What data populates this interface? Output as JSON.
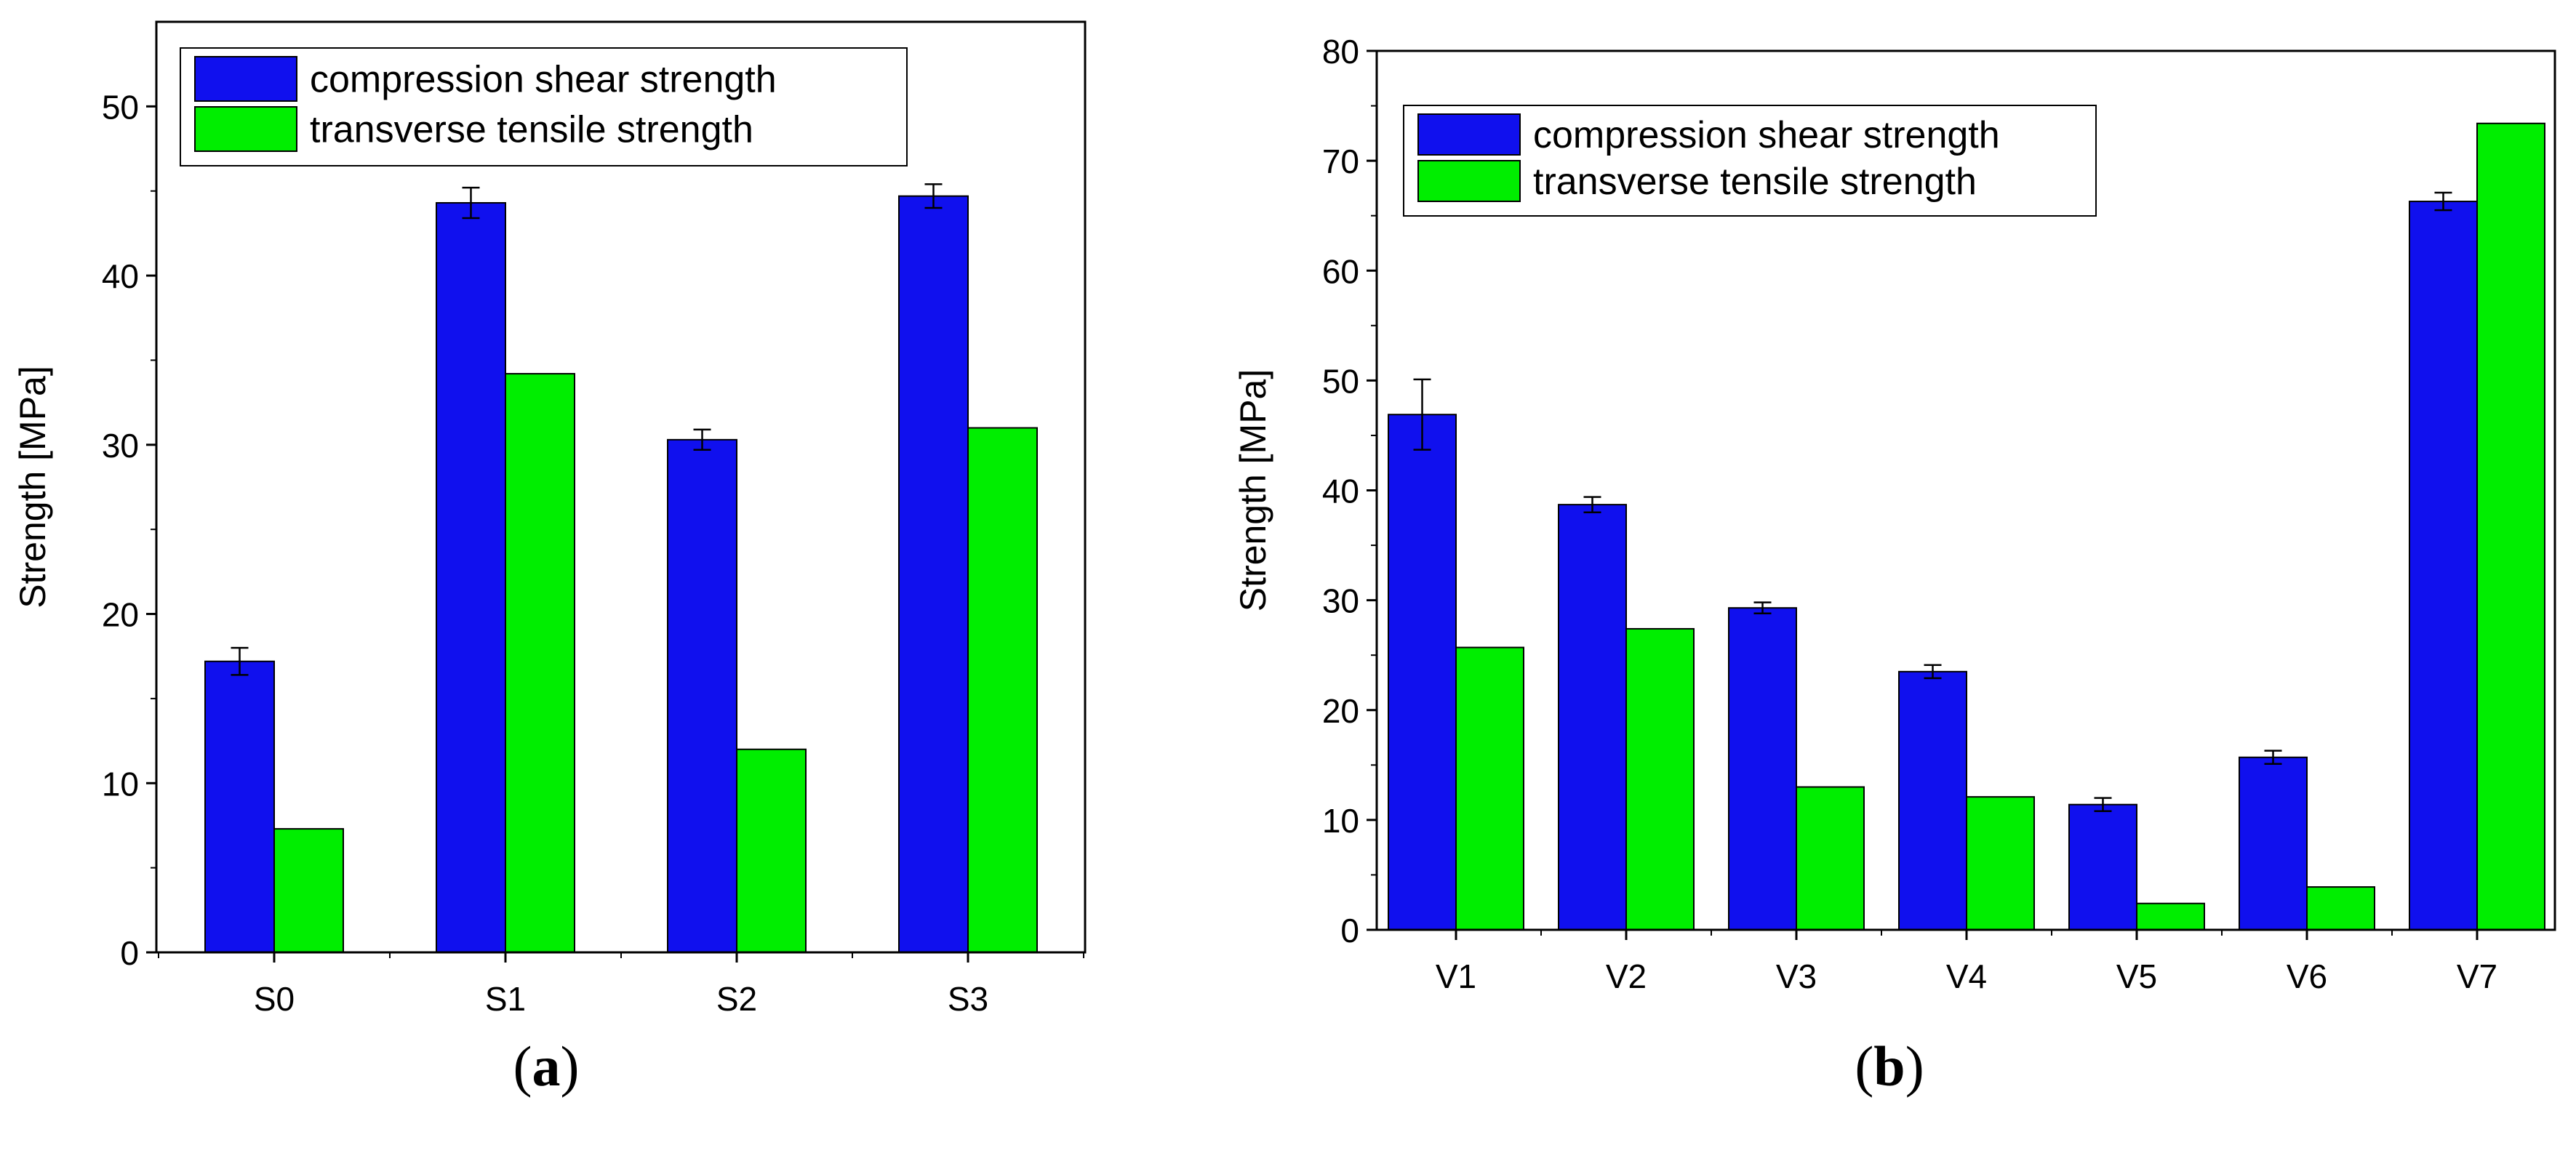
{
  "colors": {
    "compression": "#1010ee",
    "tensile": "#00ee00",
    "axis": "#000000",
    "errorbar": "#000000"
  },
  "chart_data": [
    {
      "type": "bar",
      "panel_label": "a",
      "categories": [
        "S0",
        "S1",
        "S2",
        "S3"
      ],
      "series": [
        {
          "name": "compression shear strength",
          "values": [
            17.2,
            44.3,
            30.3,
            44.7
          ],
          "errors": [
            0.8,
            0.9,
            0.6,
            0.7
          ]
        },
        {
          "name": "transverse tensile strength",
          "values": [
            7.3,
            34.2,
            12.0,
            31.0
          ]
        }
      ],
      "title": "",
      "xlabel": "",
      "ylabel": "Strength [MPa]",
      "ylim": [
        0,
        55
      ],
      "yticks": [
        0,
        10,
        20,
        30,
        40,
        50
      ],
      "legend": "top-left",
      "grid": false
    },
    {
      "type": "bar",
      "panel_label": "b",
      "categories": [
        "V1",
        "V2",
        "V3",
        "V4",
        "V5",
        "V6",
        "V7"
      ],
      "series": [
        {
          "name": "compression shear strength",
          "values": [
            46.9,
            38.7,
            29.3,
            23.5,
            11.4,
            15.7,
            66.3
          ],
          "errors": [
            3.2,
            0.7,
            0.5,
            0.6,
            0.6,
            0.6,
            0.8
          ]
        },
        {
          "name": "transverse tensile strength",
          "values": [
            25.7,
            27.4,
            13.0,
            12.1,
            2.4,
            3.9,
            73.4
          ]
        }
      ],
      "title": "",
      "xlabel": "",
      "ylabel": "Strength [MPa]",
      "ylim": [
        0,
        80
      ],
      "yticks": [
        0,
        10,
        20,
        30,
        40,
        50,
        60,
        70,
        80
      ],
      "legend": "top-left",
      "grid": false
    }
  ]
}
